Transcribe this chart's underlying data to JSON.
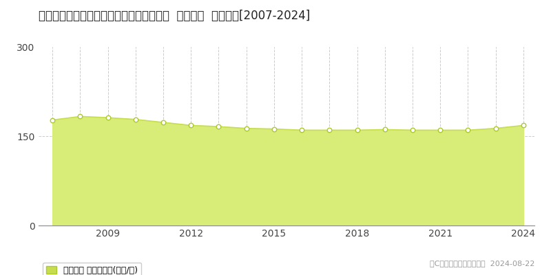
{
  "title": "新潟県新潟市中央区東大通１丁目２５番外  地価公示  地価推移[2007-2024]",
  "years": [
    2007,
    2008,
    2009,
    2010,
    2011,
    2012,
    2013,
    2014,
    2015,
    2016,
    2017,
    2018,
    2019,
    2020,
    2021,
    2022,
    2023,
    2024
  ],
  "values": [
    177,
    183,
    181,
    178,
    173,
    168,
    166,
    163,
    162,
    160,
    160,
    160,
    161,
    160,
    160,
    160,
    163,
    168
  ],
  "line_color": "#c8dc50",
  "fill_color": "#d8ec78",
  "fill_alpha": 1.0,
  "marker_facecolor": "#ffffff",
  "marker_edgecolor": "#aac830",
  "ylim": [
    0,
    300
  ],
  "yticks": [
    0,
    150,
    300
  ],
  "grid_color": "#cccccc",
  "bg_color": "#ffffff",
  "legend_label": "地価公示 平均坪単価(万円/坪)",
  "legend_marker_color": "#c8dc50",
  "copyright_text": "（C）土地価格ドットコム  2024-08-22",
  "title_fontsize": 12,
  "axis_fontsize": 10,
  "legend_fontsize": 9
}
